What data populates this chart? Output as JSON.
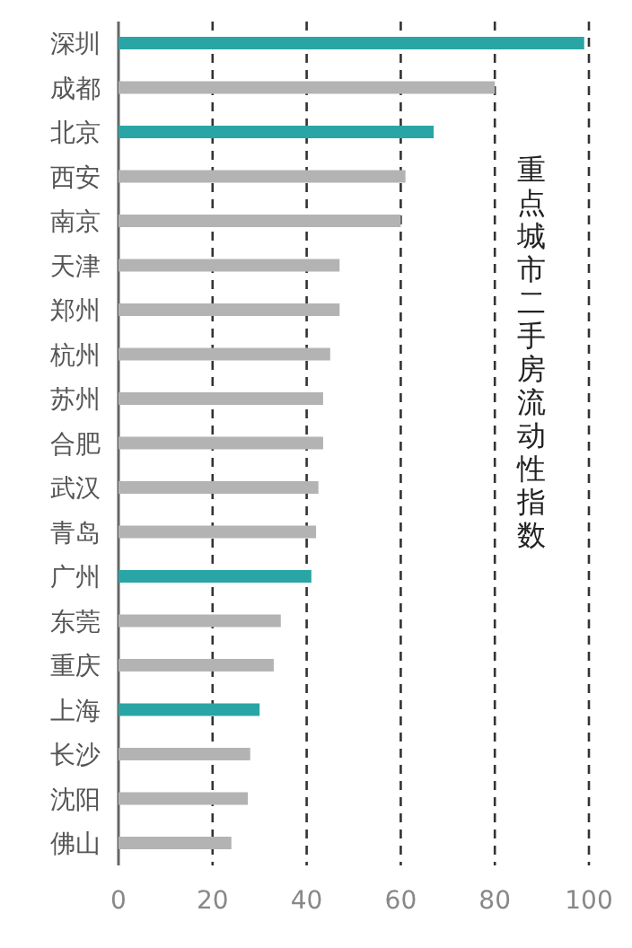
{
  "chart_data": {
    "type": "bar",
    "orientation": "horizontal",
    "title": "重点城市二手房流动性指数",
    "categories": [
      "深圳",
      "成都",
      "北京",
      "西安",
      "南京",
      "天津",
      "郑州",
      "杭州",
      "苏州",
      "合肥",
      "武汉",
      "青岛",
      "广州",
      "东莞",
      "重庆",
      "上海",
      "长沙",
      "沈阳",
      "佛山"
    ],
    "values": [
      99,
      80,
      67,
      61,
      60,
      47,
      47,
      45,
      43.5,
      43.5,
      42.5,
      42,
      41,
      34.5,
      33,
      30,
      28,
      27.5,
      24
    ],
    "colors": [
      "#2aa5a5",
      "#b3b3b3",
      "#2aa5a5",
      "#b3b3b3",
      "#b3b3b3",
      "#b3b3b3",
      "#b3b3b3",
      "#b3b3b3",
      "#b3b3b3",
      "#b3b3b3",
      "#b3b3b3",
      "#b3b3b3",
      "#2aa5a5",
      "#b3b3b3",
      "#b3b3b3",
      "#2aa5a5",
      "#b3b3b3",
      "#b3b3b3",
      "#b3b3b3"
    ],
    "xlim": [
      0,
      100
    ],
    "xticks": [
      0,
      20,
      40,
      60,
      80,
      100
    ],
    "grid": "x"
  }
}
